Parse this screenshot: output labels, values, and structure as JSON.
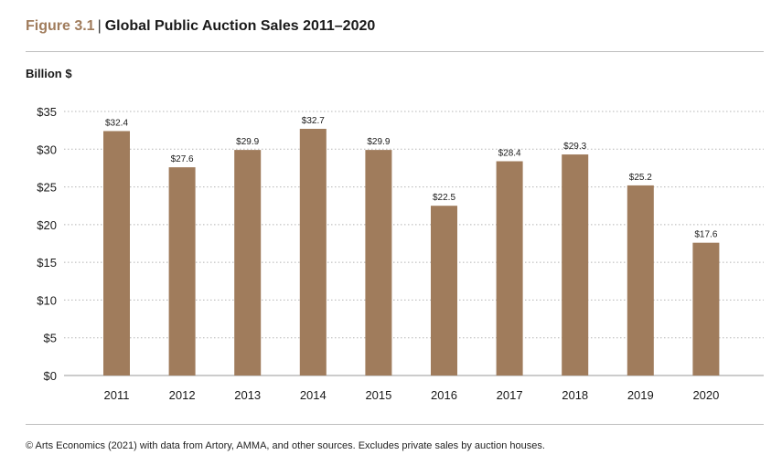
{
  "header": {
    "figure_label": "Figure 3.1",
    "separator": "|",
    "title": "Global Public Auction Sales 2011–2020"
  },
  "footer": {
    "source": "© Arts Economics (2021) with data from Artory, AMMA, and other sources. Excludes private sales by auction houses."
  },
  "colors": {
    "bar": "#a07c5c",
    "figure_label": "#a07c5c",
    "grid": "#b5b5b5",
    "rule": "#bdbdbd"
  },
  "chart_data": {
    "type": "bar",
    "title": "Global Public Auction Sales 2011–2020",
    "ylabel": "Billion $",
    "xlabel": "",
    "categories": [
      "2011",
      "2012",
      "2013",
      "2014",
      "2015",
      "2016",
      "2017",
      "2018",
      "2019",
      "2020"
    ],
    "values": [
      32.4,
      27.6,
      29.9,
      32.7,
      29.9,
      22.5,
      28.4,
      29.3,
      25.2,
      17.6
    ],
    "data_labels": [
      "$32.4",
      "$27.6",
      "$29.9",
      "$32.7",
      "$29.9",
      "$22.5",
      "$28.4",
      "$29.3",
      "$25.2",
      "$17.6"
    ],
    "yticks": [
      0,
      5,
      10,
      15,
      20,
      25,
      30,
      35
    ],
    "ytick_labels": [
      "$0",
      "$5",
      "$10",
      "$15",
      "$20",
      "$25",
      "$30",
      "$35"
    ],
    "ylim": [
      0,
      35
    ],
    "grid": "horizontal dotted",
    "legend": "none"
  }
}
